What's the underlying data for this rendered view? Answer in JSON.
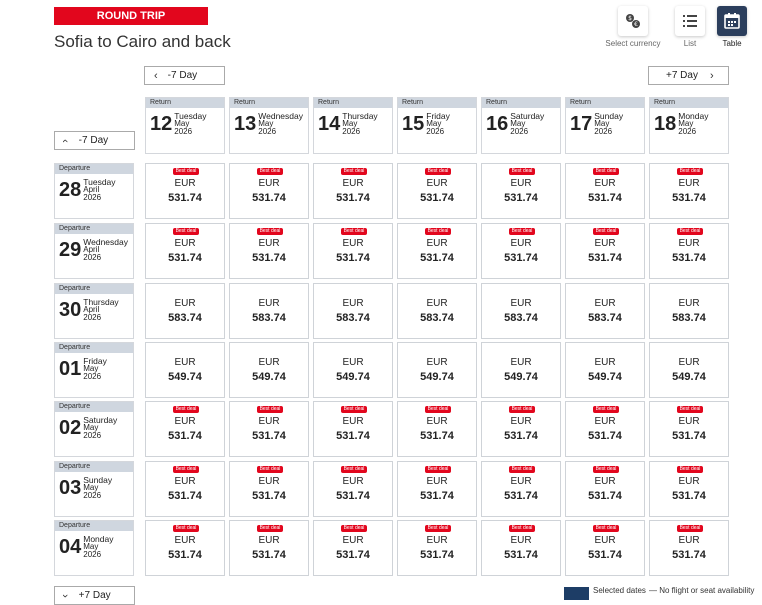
{
  "header": {
    "badge": "ROUND TRIP",
    "title": "Sofia to Cairo and back"
  },
  "views": [
    {
      "label": "Select currency",
      "icon": "currency-icon"
    },
    {
      "label": "List",
      "icon": "list-icon"
    },
    {
      "label": "Table",
      "icon": "calendar-icon",
      "active": true
    }
  ],
  "nav": {
    "ret_prev": "-7 Day",
    "ret_next": "+7 Day",
    "dep_prev": "-7 Day",
    "dep_next": "+7 Day"
  },
  "return_label": "Return",
  "departure_label": "Departure",
  "return_dates": [
    {
      "day": "12",
      "dow": "Tuesday",
      "month": "May",
      "year": "2026"
    },
    {
      "day": "13",
      "dow": "Wednesday",
      "month": "May",
      "year": "2026"
    },
    {
      "day": "14",
      "dow": "Thursday",
      "month": "May",
      "year": "2026"
    },
    {
      "day": "15",
      "dow": "Friday",
      "month": "May",
      "year": "2026"
    },
    {
      "day": "16",
      "dow": "Saturday",
      "month": "May",
      "year": "2026"
    },
    {
      "day": "17",
      "dow": "Sunday",
      "month": "May",
      "year": "2026"
    },
    {
      "day": "18",
      "dow": "Monday",
      "month": "May",
      "year": "2026"
    }
  ],
  "departure_rows": [
    {
      "day": "28",
      "dow": "Tuesday",
      "month": "April",
      "year": "2026",
      "price": "531.74",
      "best": true
    },
    {
      "day": "29",
      "dow": "Wednesday",
      "month": "April",
      "year": "2026",
      "price": "531.74",
      "best": true
    },
    {
      "day": "30",
      "dow": "Thursday",
      "month": "April",
      "year": "2026",
      "price": "583.74",
      "best": false
    },
    {
      "day": "01",
      "dow": "Friday",
      "month": "May",
      "year": "2026",
      "price": "549.74",
      "best": false
    },
    {
      "day": "02",
      "dow": "Saturday",
      "month": "May",
      "year": "2026",
      "price": "531.74",
      "best": true
    },
    {
      "day": "03",
      "dow": "Sunday",
      "month": "May",
      "year": "2026",
      "price": "531.74",
      "best": true
    },
    {
      "day": "04",
      "dow": "Monday",
      "month": "May",
      "year": "2026",
      "price": "531.74",
      "best": true
    }
  ],
  "currency": "EUR",
  "best_deal_label": "Best deal",
  "legend": {
    "selected": "Selected dates",
    "none": "— No flight or seat availability"
  },
  "colors": {
    "accent": "#e2061d",
    "navy": "#1d3d66"
  }
}
